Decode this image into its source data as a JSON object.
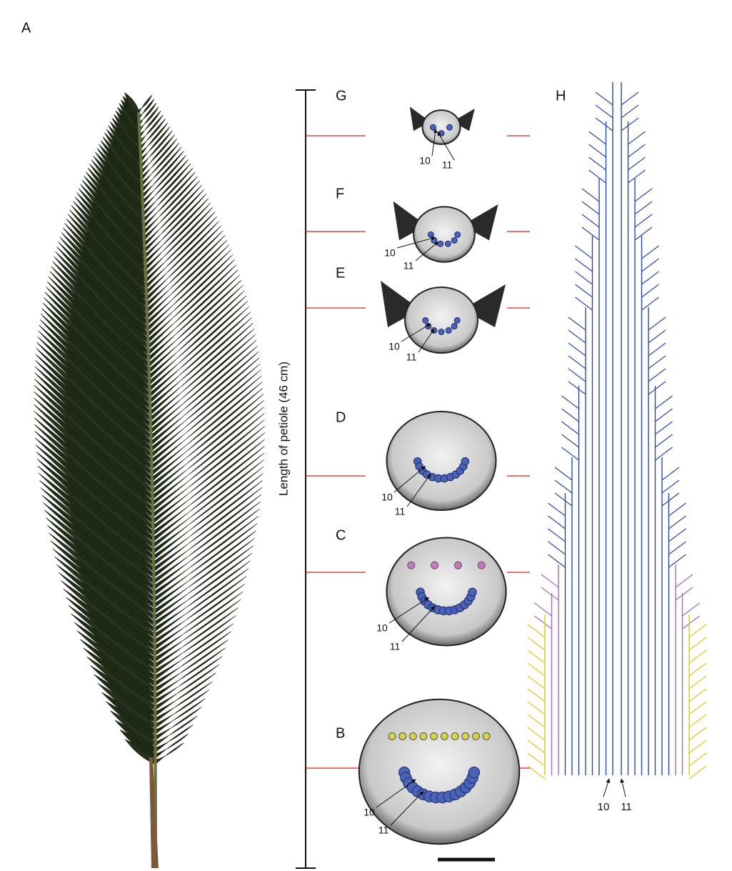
{
  "leaf": {
    "label": "A"
  },
  "scale_bar": {
    "label": "Length of petiole (46 cm)"
  },
  "sections": [
    {
      "label": "G",
      "bundle_labels": [
        "10",
        "11"
      ]
    },
    {
      "label": "F",
      "bundle_labels": [
        "10",
        "11"
      ]
    },
    {
      "label": "E",
      "bundle_labels": [
        "10",
        "11"
      ]
    },
    {
      "label": "D",
      "bundle_labels": [
        "10",
        "11"
      ]
    },
    {
      "label": "C",
      "bundle_labels": [
        "10",
        "11"
      ]
    },
    {
      "label": "B",
      "bundle_labels": [
        "10",
        "11"
      ]
    }
  ],
  "diagram": {
    "label": "H",
    "bundle_labels": [
      "10",
      "11"
    ]
  }
}
